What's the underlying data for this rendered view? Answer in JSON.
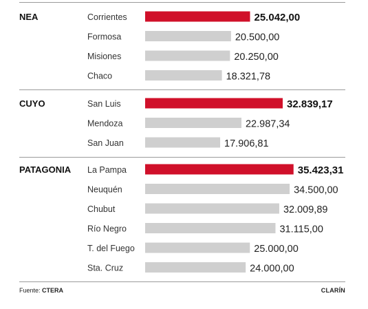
{
  "chart_data": {
    "type": "bar",
    "orientation": "horizontal",
    "value_format": "es-AR, 2 decimals",
    "highlight_color": "#d0102a",
    "bar_color": "#cfcfcf",
    "groups": [
      {
        "region": "NEA",
        "items": [
          {
            "label": "Corrientes",
            "value": 25042.0,
            "display": "25.042,00",
            "highlight": true
          },
          {
            "label": "Formosa",
            "value": 20500.0,
            "display": "20.500,00",
            "highlight": false
          },
          {
            "label": "Misiones",
            "value": 20250.0,
            "display": "20.250,00",
            "highlight": false
          },
          {
            "label": "Chaco",
            "value": 18321.78,
            "display": "18.321,78",
            "highlight": false
          }
        ]
      },
      {
        "region": "CUYO",
        "items": [
          {
            "label": "San Luis",
            "value": 32839.17,
            "display": "32.839,17",
            "highlight": true
          },
          {
            "label": "Mendoza",
            "value": 22987.34,
            "display": "22.987,34",
            "highlight": false
          },
          {
            "label": "San Juan",
            "value": 17906.81,
            "display": "17.906,81",
            "highlight": false
          }
        ]
      },
      {
        "region": "PATAGONIA",
        "items": [
          {
            "label": "La Pampa",
            "value": 35423.31,
            "display": "35.423,31",
            "highlight": true
          },
          {
            "label": "Neuquén",
            "value": 34500.0,
            "display": "34.500,00",
            "highlight": false
          },
          {
            "label": "Chubut",
            "value": 32009.89,
            "display": "32.009,89",
            "highlight": false
          },
          {
            "label": "Río Negro",
            "value": 31115.0,
            "display": "31.115,00",
            "highlight": false
          },
          {
            "label": "T. del Fuego",
            "value": 25000.0,
            "display": "25.000,00",
            "highlight": false
          },
          {
            "label": "Sta. Cruz",
            "value": 24000.0,
            "display": "24.000,00",
            "highlight": false
          }
        ]
      }
    ]
  },
  "footer": {
    "source_prefix": "Fuente: ",
    "source_name": "CTERA",
    "brand": "CLARÍN"
  }
}
